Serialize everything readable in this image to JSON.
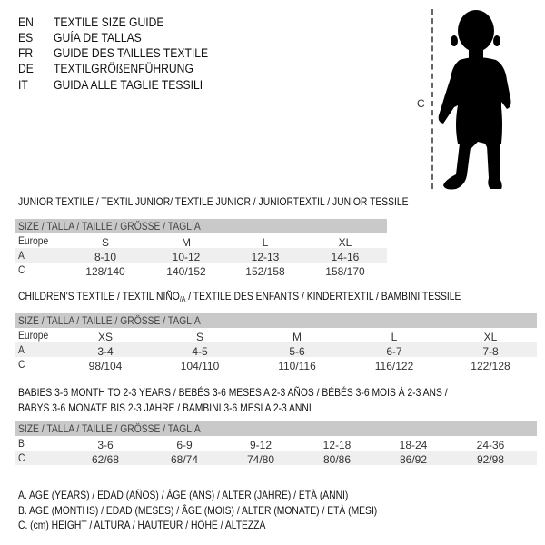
{
  "header": {
    "languages": [
      {
        "code": "EN",
        "title": "TEXTILE SIZE GUIDE"
      },
      {
        "code": "ES",
        "title": "GUÍA DE TALLAS"
      },
      {
        "code": "FR",
        "title": "GUIDE DES TAILLES TEXTILE"
      },
      {
        "code": "DE",
        "title": "TEXTILGRÖßENFÜHRUNG"
      },
      {
        "code": "IT",
        "title": "GUIDA ALLE TAGLIE TESSILI"
      }
    ],
    "figure_label": "C"
  },
  "junior": {
    "title": "JUNIOR TEXTILE / TEXTIL JUNIOR/ TEXTILE JUNIOR / JUNIORTEXTIL / JUNIOR TESSILE",
    "size_header": "SIZE / TALLA / TAILLE / GRÖSSE / TAGLIA",
    "rows": [
      {
        "label": "Europe",
        "values": [
          "S",
          "M",
          "L",
          "XL"
        ]
      },
      {
        "label": "A",
        "values": [
          "8-10",
          "10-12",
          "12-13",
          "14-16"
        ]
      },
      {
        "label": "C",
        "values": [
          "128/140",
          "140/152",
          "152/158",
          "158/170"
        ]
      }
    ]
  },
  "children": {
    "title_before": "CHILDREN'S TEXTILE / TEXTIL NIÑO",
    "title_sub": "/A",
    "title_after": " / TEXTILE DES ENFANTS / KINDERTEXTIL / BAMBINI TESSILE",
    "size_header": "SIZE / TALLA / TAILLE / GRÖSSE / TAGLIA",
    "rows": [
      {
        "label": "Europe",
        "values": [
          "XS",
          "S",
          "M",
          "L",
          "XL"
        ]
      },
      {
        "label": "A",
        "values": [
          "3-4",
          "4-5",
          "5-6",
          "6-7",
          "7-8"
        ]
      },
      {
        "label": "C",
        "values": [
          "98/104",
          "104/110",
          "110/116",
          "116/122",
          "122/128"
        ]
      }
    ]
  },
  "babies": {
    "title_line1": "BABIES 3-6 MONTH TO 2-3 YEARS / BEBÉS 3-6 MESES A 2-3 AÑOS / BÉBÉS 3-6 MOIS À 2-3 ANS /",
    "title_line2": "BABYS 3-6 MONATE BIS 2-3 JAHRE / BAMBINI 3-6 MESI A 2-3 ANNI",
    "size_header": "SIZE / TALLA / TAILLE / GRÖSSE / TAGLIA",
    "rows": [
      {
        "label": "B",
        "values": [
          "3-6",
          "6-9",
          "9-12",
          "12-18",
          "18-24",
          "24-36"
        ]
      },
      {
        "label": "C",
        "values": [
          "62/68",
          "68/74",
          "74/80",
          "80/86",
          "86/92",
          "92/98"
        ]
      }
    ]
  },
  "legend": [
    "A. AGE (YEARS) / EDAD (AÑOS) / ÂGE (ANS) / ALTER (JAHRE) / ETÀ (ANNI)",
    "B. AGE (MONTHS) / EDAD (MESES) / ÂGE (MOIS) / ALTER (MONATE) / ETÀ (MESI)",
    "C. (cm) HEIGHT / ALTURA / HAUTEUR / HÖHE / ALTEZZA"
  ]
}
